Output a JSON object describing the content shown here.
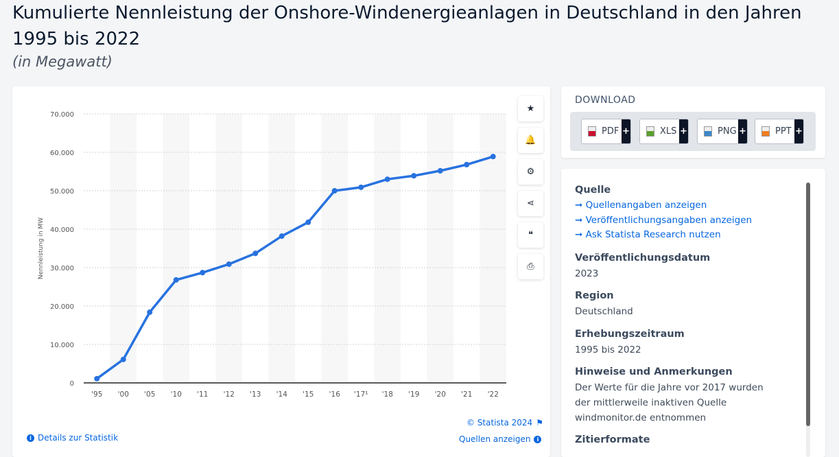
{
  "title": "Kumulierte Nennleistung der Onshore-Windenergieanlagen in Deutschland in den Jahren 1995 bis 2022",
  "subtitle": "(in Megawatt)",
  "toolbar": [
    {
      "icon": "star-icon",
      "glyph": "★"
    },
    {
      "icon": "bell-icon",
      "glyph": "🔔"
    },
    {
      "icon": "gear-icon",
      "glyph": "⚙"
    },
    {
      "icon": "share-icon",
      "glyph": "⋖"
    },
    {
      "icon": "quote-icon",
      "glyph": "❝"
    },
    {
      "icon": "print-icon",
      "glyph": "⎙"
    }
  ],
  "chart_footer": {
    "copyright": "© Statista 2024",
    "details": "Details zur Statistik",
    "sources": "Quellen anzeigen"
  },
  "chart_data": {
    "type": "line",
    "title": "",
    "ylabel": "Nennleistung in MW",
    "xlabel": "",
    "ylim": [
      0,
      70000
    ],
    "yticks": [
      "0",
      "10.000",
      "20.000",
      "30.000",
      "40.000",
      "50.000",
      "60.000",
      "70.000"
    ],
    "categories": [
      "'95",
      "'00",
      "'05",
      "'10",
      "'11",
      "'12",
      "'13",
      "'14",
      "'15",
      "'16",
      "'17¹",
      "'18",
      "'19",
      "'20",
      "'21",
      "'22"
    ],
    "values": [
      1100,
      6100,
      18400,
      26800,
      28700,
      30900,
      33700,
      38200,
      41800,
      50000,
      50900,
      53000,
      53900,
      55200,
      56800,
      58900
    ],
    "grid": true,
    "color": "#2872df"
  },
  "download": {
    "heading": "DOWNLOAD",
    "buttons": [
      {
        "label": "PDF",
        "color": "#c8102e"
      },
      {
        "label": "XLS",
        "color": "#5aa02c"
      },
      {
        "label": "PNG",
        "color": "#3a88c8"
      },
      {
        "label": "PPT",
        "color": "#ef7d22"
      }
    ]
  },
  "info": {
    "source_heading": "Quelle",
    "links": [
      "Quellenangaben anzeigen",
      "Veröffentlichungsangaben anzeigen",
      "Ask Statista Research nutzen"
    ],
    "pubdate_heading": "Veröffentlichungsdatum",
    "pubdate": "2023",
    "region_heading": "Region",
    "region": "Deutschland",
    "period_heading": "Erhebungszeitraum",
    "period": "1995 bis 2022",
    "notes_heading": "Hinweise und Anmerkungen",
    "notes": "Der Werte für die Jahre vor 2017 wurden der mittlerweile inaktiven Quelle windmonitor.de entnommen",
    "cite_heading": "Zitierformate"
  }
}
